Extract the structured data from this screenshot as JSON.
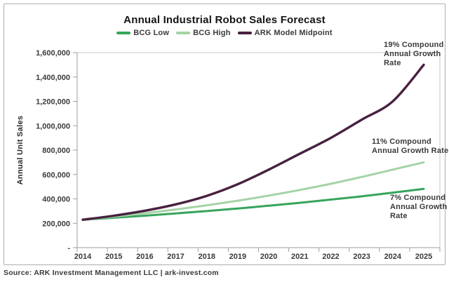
{
  "chart_data": {
    "type": "line",
    "title": "Annual Industrial Robot Sales Forecast",
    "xlabel": "",
    "ylabel": "Annual Unit Sales",
    "x": [
      2014,
      2015,
      2016,
      2017,
      2018,
      2019,
      2020,
      2021,
      2022,
      2023,
      2024,
      2025
    ],
    "series": [
      {
        "name": "BCG Low",
        "color": "#37A45C",
        "cagr": "7%",
        "values": [
          229000,
          245000,
          262000,
          281000,
          300000,
          321000,
          344000,
          368000,
          394000,
          421000,
          451000,
          482000
        ]
      },
      {
        "name": "BCG High",
        "color": "#A4D3A6",
        "cagr": "11%",
        "values": [
          229000,
          254000,
          282000,
          313000,
          347000,
          385000,
          427000,
          473000,
          524000,
          580000,
          640000,
          700000
        ]
      },
      {
        "name": "ARK Model Midpoint",
        "color": "#47203F",
        "cagr": "19%",
        "values": [
          229000,
          262000,
          303000,
          355000,
          425000,
          520000,
          640000,
          770000,
          900000,
          1050000,
          1200000,
          1500000
        ]
      }
    ],
    "ylim": [
      0,
      1600000
    ],
    "y_tick_step": 200000,
    "y_tick_labels": [
      "-",
      "200,000",
      "400,000",
      "600,000",
      "800,000",
      "1,000,000",
      "1,200,000",
      "1,400,000",
      "1,600,000"
    ],
    "grid": false,
    "legend_position": "top"
  },
  "annotations": {
    "a19": {
      "lines": [
        "19% Compound",
        "Annual Growth",
        "Rate"
      ]
    },
    "a11": {
      "lines": [
        "11% Compound",
        "Annual Growth Rate"
      ]
    },
    "a7": {
      "lines": [
        "7% Compound",
        "Annual Growth",
        "Rate"
      ]
    }
  },
  "footer": {
    "source": "Source: ARK Investment Management LLC | ark-invest.com"
  },
  "colors": {
    "text": "#3A3A3A",
    "axis": "#9E9E9E",
    "plot_border": "#C9C9C9",
    "figure_border": "#ADADAD"
  }
}
